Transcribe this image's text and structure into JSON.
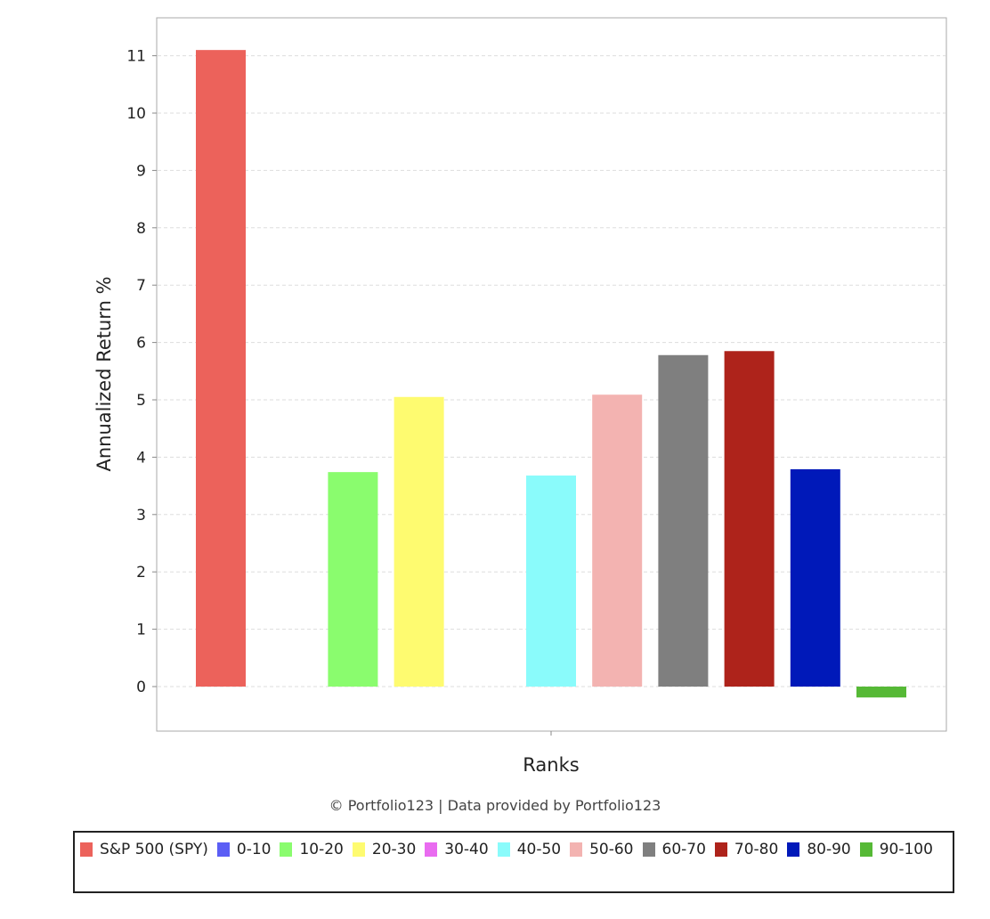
{
  "chart_data": {
    "type": "bar",
    "title": "",
    "xlabel": "Ranks",
    "ylabel": "Annualized Return %",
    "ylim": [
      -0.78,
      11.66
    ],
    "yticks": [
      "0",
      "1",
      "2",
      "3",
      "4",
      "5",
      "6",
      "7",
      "8",
      "9",
      "10",
      "11"
    ],
    "grid": true,
    "legend_placement": "bottom",
    "series": [
      {
        "name": "S&P 500 (SPY)",
        "value": 11.1,
        "color": "#ec625b"
      },
      {
        "name": "0-10",
        "value": null,
        "color": "#5b5ef5"
      },
      {
        "name": "10-20",
        "value": 3.74,
        "color": "#8afc6e"
      },
      {
        "name": "20-30",
        "value": 5.05,
        "color": "#fefb70"
      },
      {
        "name": "30-40",
        "value": null,
        "color": "#e96bf0"
      },
      {
        "name": "40-50",
        "value": 3.68,
        "color": "#8afbfb"
      },
      {
        "name": "50-60",
        "value": 5.09,
        "color": "#f3b3b1"
      },
      {
        "name": "60-70",
        "value": 5.78,
        "color": "#7f7f7f"
      },
      {
        "name": "70-80",
        "value": 5.85,
        "color": "#ae231b"
      },
      {
        "name": "80-90",
        "value": 3.79,
        "color": "#0019b9"
      },
      {
        "name": "90-100",
        "value": -0.19,
        "color": "#56b936"
      }
    ]
  },
  "credit": "© Portfolio123 | Data provided by Portfolio123"
}
